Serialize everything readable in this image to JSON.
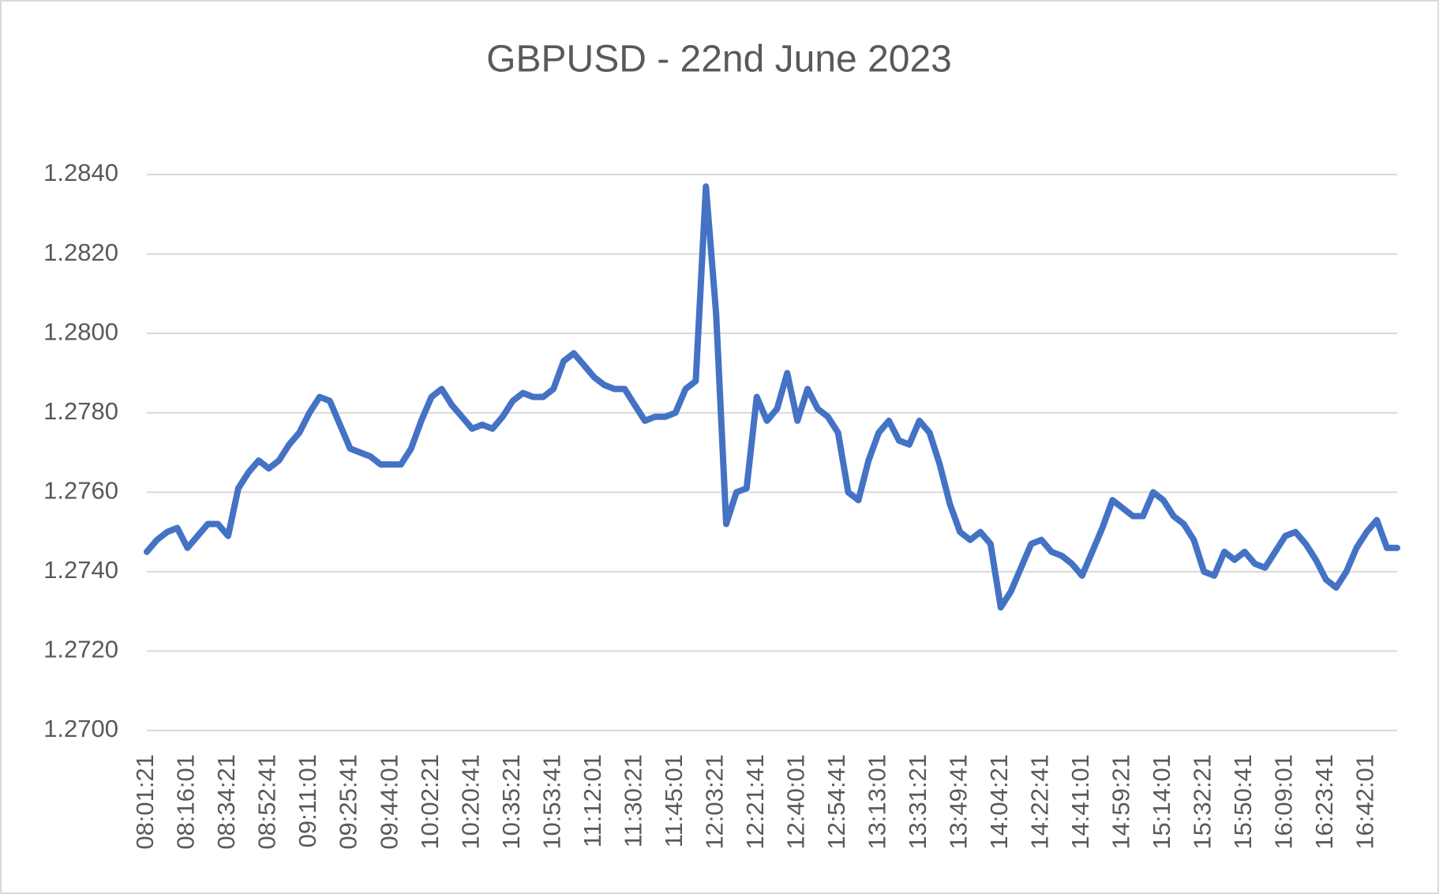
{
  "chart_data": {
    "type": "line",
    "title": "GBPUSD - 22nd June 2023",
    "color": "#4472c4",
    "grid": true,
    "categories": [
      "08:01:21",
      null,
      null,
      null,
      "08:16:01",
      null,
      null,
      null,
      "08:34:21",
      null,
      null,
      null,
      "08:52:41",
      null,
      null,
      null,
      "09:11:01",
      null,
      null,
      null,
      "09:25:41",
      null,
      null,
      null,
      "09:44:01",
      null,
      null,
      null,
      "10:02:21",
      null,
      null,
      null,
      "10:20:41",
      null,
      null,
      null,
      "10:35:21",
      null,
      null,
      null,
      "10:53:41",
      null,
      null,
      null,
      "11:12:01",
      null,
      null,
      null,
      "11:30:21",
      null,
      null,
      null,
      "11:45:01",
      null,
      null,
      null,
      "12:03:21",
      null,
      null,
      null,
      "12:21:41",
      null,
      null,
      null,
      "12:40:01",
      null,
      null,
      null,
      "12:54:41",
      null,
      null,
      null,
      "13:13:01",
      null,
      null,
      null,
      "13:31:21",
      null,
      null,
      null,
      "13:49:41",
      null,
      null,
      null,
      "14:04:21",
      null,
      null,
      null,
      "14:22:41",
      null,
      null,
      null,
      "14:41:01",
      null,
      null,
      null,
      "14:59:21",
      null,
      null,
      null,
      "15:14:01",
      null,
      null,
      null,
      "15:32:21",
      null,
      null,
      null,
      "15:50:41",
      null,
      null,
      null,
      "16:09:01",
      null,
      null,
      null,
      "16:23:41",
      null,
      null,
      null,
      "16:42:01",
      null,
      null,
      null
    ],
    "values": [
      1.2745,
      1.2748,
      1.275,
      1.2751,
      1.2746,
      1.2749,
      1.2752,
      1.2752,
      1.2749,
      1.2761,
      1.2765,
      1.2768,
      1.2766,
      1.2768,
      1.2772,
      1.2775,
      1.278,
      1.2784,
      1.2783,
      1.2777,
      1.2771,
      1.277,
      1.2769,
      1.2767,
      1.2767,
      1.2767,
      1.2771,
      1.2778,
      1.2784,
      1.2786,
      1.2782,
      1.2779,
      1.2776,
      1.2777,
      1.2776,
      1.2779,
      1.2783,
      1.2785,
      1.2784,
      1.2784,
      1.2786,
      1.2793,
      1.2795,
      1.2792,
      1.2789,
      1.2787,
      1.2786,
      1.2786,
      1.2782,
      1.2778,
      1.2779,
      1.2779,
      1.278,
      1.2786,
      1.2788,
      1.2837,
      1.2805,
      1.2752,
      1.276,
      1.2761,
      1.2784,
      1.2778,
      1.2781,
      1.279,
      1.2778,
      1.2786,
      1.2781,
      1.2779,
      1.2775,
      1.276,
      1.2758,
      1.2768,
      1.2775,
      1.2778,
      1.2773,
      1.2772,
      1.2778,
      1.2775,
      1.2767,
      1.2757,
      1.275,
      1.2748,
      1.275,
      1.2747,
      1.2731,
      1.2735,
      1.2741,
      1.2747,
      1.2748,
      1.2745,
      1.2744,
      1.2742,
      1.2739,
      1.2745,
      1.2751,
      1.2758,
      1.2756,
      1.2754,
      1.2754,
      1.276,
      1.2758,
      1.2754,
      1.2752,
      1.2748,
      1.274,
      1.2739,
      1.2745,
      1.2743,
      1.2745,
      1.2742,
      1.2741,
      1.2745,
      1.2749,
      1.275,
      1.2747,
      1.2743,
      1.2738,
      1.2736,
      1.274,
      1.2746,
      1.275,
      1.2753,
      1.2746,
      1.2746
    ],
    "ylim": [
      1.27,
      1.284
    ],
    "yticks": [
      {
        "value": 1.27,
        "label": "1.2700"
      },
      {
        "value": 1.272,
        "label": "1.2720"
      },
      {
        "value": 1.274,
        "label": "1.2740"
      },
      {
        "value": 1.276,
        "label": "1.2760"
      },
      {
        "value": 1.278,
        "label": "1.2780"
      },
      {
        "value": 1.28,
        "label": "1.2800"
      },
      {
        "value": 1.282,
        "label": "1.2820"
      },
      {
        "value": 1.284,
        "label": "1.2840"
      }
    ]
  }
}
